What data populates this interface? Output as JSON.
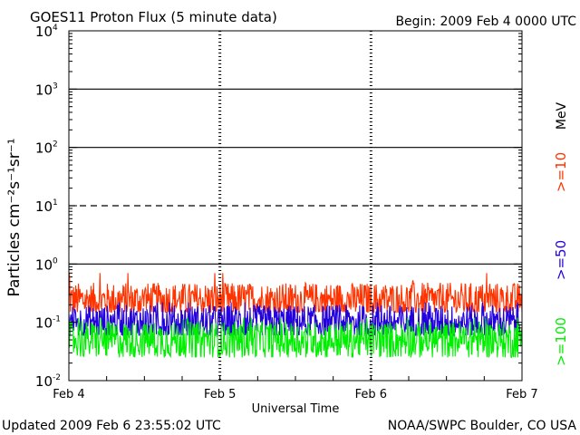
{
  "header": {
    "title": "GOES11 Proton Flux (5 minute data)",
    "begin": "Begin: 2009 Feb 4 0000 UTC"
  },
  "footer": {
    "updated": "Updated 2009 Feb  6 23:55:02 UTC",
    "credit": "NOAA/SWPC Boulder, CO USA"
  },
  "colors": {
    "ge10": "#ff3300",
    "ge50": "#2200dd",
    "ge100": "#00ee00",
    "axis": "#000000"
  },
  "chart_data": {
    "type": "line",
    "title": "GOES11 Proton Flux (5 minute data)",
    "xlabel": "Universal Time",
    "ylabel": "Particles cm⁻²s⁻¹sr⁻¹",
    "yscale": "log",
    "ylim": [
      0.01,
      10000
    ],
    "xlim": [
      0,
      3
    ],
    "x_ticks": [
      {
        "value": 0,
        "label": "Feb 4"
      },
      {
        "value": 1,
        "label": "Feb 5"
      },
      {
        "value": 2,
        "label": "Feb 6"
      },
      {
        "value": 3,
        "label": "Feb 7"
      }
    ],
    "y_ticks": [
      {
        "value": 0.01,
        "base": "10",
        "exp": "-2"
      },
      {
        "value": 0.1,
        "base": "10",
        "exp": "-1"
      },
      {
        "value": 1,
        "base": "10",
        "exp": "0"
      },
      {
        "value": 10,
        "base": "10",
        "exp": "1"
      },
      {
        "value": 100,
        "base": "10",
        "exp": "2"
      },
      {
        "value": 1000,
        "base": "10",
        "exp": "3"
      },
      {
        "value": 10000,
        "base": "10",
        "exp": "4"
      }
    ],
    "threshold_lines": [
      {
        "value": 1,
        "style": "solid"
      },
      {
        "value": 10,
        "style": "dashed"
      },
      {
        "value": 100,
        "style": "solid"
      },
      {
        "value": 1000,
        "style": "solid"
      }
    ],
    "unit_label": "MeV",
    "series": [
      {
        "name": ">=10",
        "color": "#ff3300",
        "typical": 0.24,
        "low": 0.15,
        "high": 0.7,
        "spread": 0.3
      },
      {
        "name": ">=50",
        "color": "#2200dd",
        "typical": 0.1,
        "low": 0.06,
        "high": 0.22,
        "spread": 0.3
      },
      {
        "name": ">=100",
        "color": "#00ee00",
        "typical": 0.05,
        "low": 0.025,
        "high": 0.12,
        "spread": 0.32
      }
    ]
  }
}
